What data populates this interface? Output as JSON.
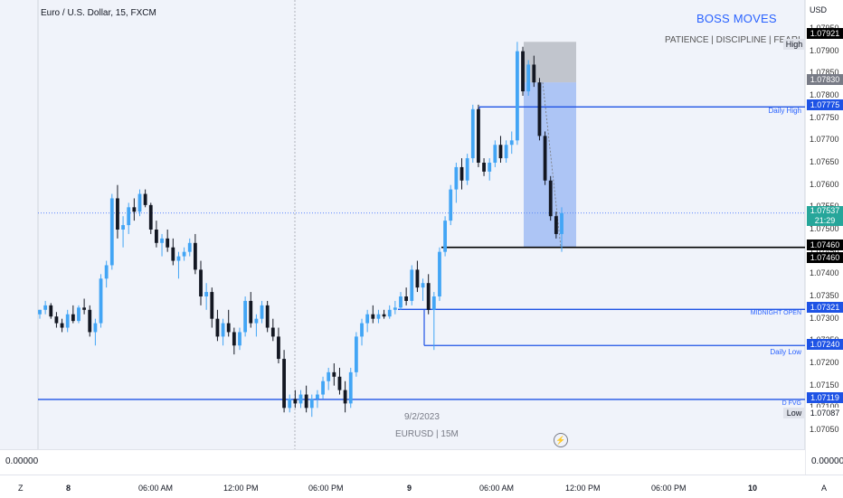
{
  "header": {
    "title": "Euro / U.S. Dollar, 15, FXCM",
    "currency": "USD"
  },
  "brand": {
    "name": "BOSS MOVES",
    "tagline": "PATIENCE | DISCIPLINE | FEARLESS"
  },
  "price_axis": {
    "ticks": [
      "1.07950",
      "1.07900",
      "1.07850",
      "1.07800",
      "1.07750",
      "1.07700",
      "1.07650",
      "1.07600",
      "1.07550",
      "1.07500",
      "1.07450",
      "1.07400",
      "1.07350",
      "1.07300",
      "1.07250",
      "1.07200",
      "1.07150",
      "1.07100",
      "1.07050"
    ]
  },
  "levels": [
    {
      "id": "daily-high",
      "price": 1.07775,
      "label": "Daily High",
      "tag": "1.07775",
      "color": "#1e53e5",
      "x_start": 530
    },
    {
      "id": "hline",
      "price": 1.0746,
      "label": "",
      "tag": "1.07460",
      "color": "#000000",
      "x_start": 488
    },
    {
      "id": "midnight-open",
      "price": 1.07321,
      "label": "MIDNIGHT OPEN",
      "tag": "1.07321",
      "color": "#1e53e5",
      "x_start": 440
    },
    {
      "id": "daily-low",
      "price": 1.0724,
      "label": "Daily Low",
      "tag": "1.07240",
      "color": "#1e53e5",
      "x_start": 469
    },
    {
      "id": "dfvg",
      "price": 1.07119,
      "label": "D FVG",
      "tag": "1.07119",
      "color": "#1e53e5",
      "x_start": 42
    }
  ],
  "tags": {
    "high": {
      "label": "High",
      "value": "1.07921"
    },
    "low": {
      "label": "Low",
      "value": "1.07087"
    },
    "stop": "1.07830",
    "current_price": "1.07537",
    "countdown": "21:29",
    "black_level": "1.07460"
  },
  "notes": {
    "date": "9/2/2023",
    "symbol": "EURUSD | 15M"
  },
  "sub_pane": {
    "left_value": "0.00000",
    "right_value": "0.00000"
  },
  "time_axis": {
    "labels": [
      {
        "text": "8",
        "bold": true
      },
      {
        "text": "06:00 AM",
        "bold": false
      },
      {
        "text": "12:00 PM",
        "bold": false
      },
      {
        "text": "06:00 PM",
        "bold": false
      },
      {
        "text": "9",
        "bold": true
      },
      {
        "text": "06:00 AM",
        "bold": false
      },
      {
        "text": "12:00 PM",
        "bold": false
      },
      {
        "text": "06:00 PM",
        "bold": false
      },
      {
        "text": "10",
        "bold": true
      }
    ],
    "left_corner": "Z",
    "right_corner": "A"
  },
  "chart_data": {
    "type": "candlestick",
    "symbol": "EURUSD",
    "timeframe": "15",
    "ylim": [
      1.0703,
      1.0797
    ],
    "candles": [
      [
        1.0731,
        1.0732,
        1.073,
        1.0732
      ],
      [
        1.0732,
        1.0734,
        1.0731,
        1.0733
      ],
      [
        1.0733,
        1.07335,
        1.073,
        1.07305
      ],
      [
        1.07305,
        1.07315,
        1.0728,
        1.0729
      ],
      [
        1.0729,
        1.073,
        1.0727,
        1.0728
      ],
      [
        1.0728,
        1.0732,
        1.0727,
        1.0731
      ],
      [
        1.0731,
        1.0733,
        1.0729,
        1.07295
      ],
      [
        1.07295,
        1.0733,
        1.0729,
        1.07325
      ],
      [
        1.07325,
        1.07345,
        1.0731,
        1.0732
      ],
      [
        1.0732,
        1.0733,
        1.0726,
        1.0727
      ],
      [
        1.0727,
        1.073,
        1.0724,
        1.0729
      ],
      [
        1.0729,
        1.074,
        1.0728,
        1.0739
      ],
      [
        1.0739,
        1.0743,
        1.0737,
        1.0742
      ],
      [
        1.0742,
        1.0758,
        1.0741,
        1.0757
      ],
      [
        1.0757,
        1.076,
        1.0748,
        1.075
      ],
      [
        1.075,
        1.0753,
        1.0746,
        1.0751
      ],
      [
        1.0751,
        1.0756,
        1.0749,
        1.0755
      ],
      [
        1.0755,
        1.0757,
        1.0752,
        1.0754
      ],
      [
        1.0754,
        1.0759,
        1.0753,
        1.0758
      ],
      [
        1.0758,
        1.0759,
        1.0755,
        1.07555
      ],
      [
        1.07555,
        1.0756,
        1.0749,
        1.075
      ],
      [
        1.075,
        1.0752,
        1.0746,
        1.0747
      ],
      [
        1.0747,
        1.0749,
        1.0744,
        1.0748
      ],
      [
        1.0748,
        1.075,
        1.0745,
        1.0746
      ],
      [
        1.0746,
        1.0748,
        1.0742,
        1.0743
      ],
      [
        1.0743,
        1.0745,
        1.0739,
        1.0744
      ],
      [
        1.0744,
        1.0746,
        1.0743,
        1.0745
      ],
      [
        1.0745,
        1.0748,
        1.0744,
        1.0747
      ],
      [
        1.0747,
        1.0749,
        1.074,
        1.0741
      ],
      [
        1.0741,
        1.0743,
        1.0733,
        1.0735
      ],
      [
        1.0735,
        1.0738,
        1.0732,
        1.0736
      ],
      [
        1.0736,
        1.0737,
        1.0728,
        1.073
      ],
      [
        1.073,
        1.0732,
        1.0725,
        1.0726
      ],
      [
        1.0726,
        1.073,
        1.0724,
        1.0729
      ],
      [
        1.0729,
        1.0732,
        1.0726,
        1.0727
      ],
      [
        1.0727,
        1.0728,
        1.0722,
        1.0724
      ],
      [
        1.0724,
        1.0728,
        1.0723,
        1.0727
      ],
      [
        1.0727,
        1.0735,
        1.0726,
        1.0734
      ],
      [
        1.0734,
        1.0736,
        1.0728,
        1.0729
      ],
      [
        1.0729,
        1.0731,
        1.0726,
        1.073
      ],
      [
        1.073,
        1.0734,
        1.0729,
        1.0733
      ],
      [
        1.0733,
        1.0734,
        1.0727,
        1.0728
      ],
      [
        1.0728,
        1.073,
        1.0725,
        1.0726
      ],
      [
        1.0726,
        1.0728,
        1.072,
        1.0721
      ],
      [
        1.0721,
        1.0723,
        1.0709,
        1.071
      ],
      [
        1.071,
        1.0713,
        1.0709,
        1.0712
      ],
      [
        1.0712,
        1.0714,
        1.071,
        1.0711
      ],
      [
        1.0711,
        1.0714,
        1.071,
        1.0713
      ],
      [
        1.0713,
        1.0715,
        1.0709,
        1.071
      ],
      [
        1.071,
        1.0713,
        1.0708,
        1.0712
      ],
      [
        1.0712,
        1.0714,
        1.071,
        1.0713
      ],
      [
        1.0713,
        1.0717,
        1.0712,
        1.0716
      ],
      [
        1.0716,
        1.0719,
        1.0714,
        1.0718
      ],
      [
        1.0718,
        1.072,
        1.0715,
        1.0717
      ],
      [
        1.0717,
        1.0719,
        1.0713,
        1.0714
      ],
      [
        1.0714,
        1.0716,
        1.0709,
        1.0711
      ],
      [
        1.0711,
        1.0719,
        1.071,
        1.0718
      ],
      [
        1.0718,
        1.0727,
        1.0717,
        1.0726
      ],
      [
        1.0726,
        1.073,
        1.0724,
        1.0729
      ],
      [
        1.0729,
        1.0732,
        1.0727,
        1.0731
      ],
      [
        1.0731,
        1.0733,
        1.0729,
        1.073
      ],
      [
        1.073,
        1.0732,
        1.0729,
        1.0731
      ],
      [
        1.0731,
        1.0732,
        1.073,
        1.07305
      ],
      [
        1.07305,
        1.0733,
        1.073,
        1.0732
      ],
      [
        1.0732,
        1.0734,
        1.0731,
        1.07325
      ],
      [
        1.07325,
        1.0736,
        1.0732,
        1.0735
      ],
      [
        1.0735,
        1.0737,
        1.0733,
        1.0734
      ],
      [
        1.0734,
        1.0742,
        1.0733,
        1.0741
      ],
      [
        1.0741,
        1.0743,
        1.0736,
        1.0737
      ],
      [
        1.0737,
        1.0739,
        1.0734,
        1.0738
      ],
      [
        1.0738,
        1.074,
        1.0731,
        1.0732
      ],
      [
        1.0732,
        1.0736,
        1.0723,
        1.0735
      ],
      [
        1.0735,
        1.0746,
        1.0734,
        1.0745
      ],
      [
        1.0745,
        1.0753,
        1.0744,
        1.0752
      ],
      [
        1.0752,
        1.076,
        1.0751,
        1.0759
      ],
      [
        1.0759,
        1.0765,
        1.0756,
        1.0764
      ],
      [
        1.0764,
        1.0766,
        1.0759,
        1.0761
      ],
      [
        1.0761,
        1.0767,
        1.076,
        1.0766
      ],
      [
        1.0766,
        1.0778,
        1.0765,
        1.0777
      ],
      [
        1.0777,
        1.0778,
        1.0764,
        1.0765
      ],
      [
        1.0765,
        1.0766,
        1.0762,
        1.0763
      ],
      [
        1.0763,
        1.0766,
        1.0761,
        1.0765
      ],
      [
        1.0765,
        1.077,
        1.0764,
        1.0769
      ],
      [
        1.0769,
        1.0771,
        1.0765,
        1.0766
      ],
      [
        1.0766,
        1.077,
        1.0765,
        1.0769
      ],
      [
        1.0769,
        1.0772,
        1.0767,
        1.077
      ],
      [
        1.077,
        1.07921,
        1.0769,
        1.079
      ],
      [
        1.079,
        1.0791,
        1.078,
        1.0781
      ],
      [
        1.0781,
        1.0788,
        1.078,
        1.0787
      ],
      [
        1.0787,
        1.0789,
        1.0782,
        1.0783
      ],
      [
        1.0783,
        1.0784,
        1.077,
        1.0771
      ],
      [
        1.0771,
        1.0772,
        1.076,
        1.0761
      ],
      [
        1.0761,
        1.0762,
        1.0752,
        1.0753
      ],
      [
        1.0753,
        1.0754,
        1.0748,
        1.0749
      ],
      [
        1.0749,
        1.0755,
        1.0745,
        1.07537
      ]
    ]
  }
}
